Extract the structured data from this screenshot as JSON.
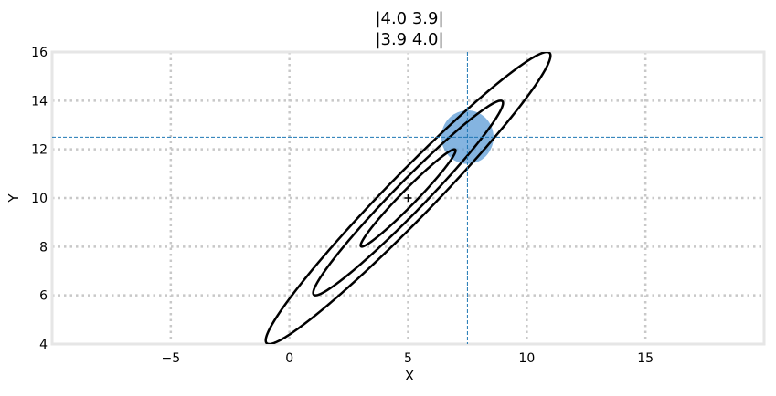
{
  "chart_data": {
    "type": "contour",
    "title_lines": [
      "|4.0 3.9|",
      "|3.9 4.0|"
    ],
    "xlabel": "X",
    "ylabel": "Y",
    "xlim": [
      -10,
      20
    ],
    "ylim": [
      4,
      16
    ],
    "xticks": [
      -5,
      0,
      5,
      10,
      15
    ],
    "xtick_labels": [
      "−5",
      "0",
      "5",
      "10",
      "15"
    ],
    "yticks": [
      4,
      6,
      8,
      10,
      12,
      14,
      16
    ],
    "ytick_labels": [
      "4",
      "6",
      "8",
      "10",
      "12",
      "14",
      "16"
    ],
    "grid": true,
    "mean": [
      5,
      10
    ],
    "covariance": [
      [
        4.0,
        3.9
      ],
      [
        3.9,
        4.0
      ]
    ],
    "ellipses": [
      {
        "std": 1,
        "x_extent": [
          3,
          7
        ],
        "y_extent": [
          8,
          12
        ]
      },
      {
        "std": 2,
        "x_extent": [
          1,
          9
        ],
        "y_extent": [
          6,
          14
        ]
      },
      {
        "std": 3,
        "x_extent": [
          -1,
          11
        ],
        "y_extent": [
          4,
          16
        ]
      }
    ],
    "point": {
      "x": 7.5,
      "y": 12.5,
      "color": "#5b9bd5"
    },
    "crosshair": {
      "x": 7.5,
      "y": 12.5,
      "color": "#1f77b4"
    },
    "colors": {
      "ellipse": "#000000",
      "grid": "#c8c8c8",
      "frame": "#e6e6e6"
    }
  }
}
